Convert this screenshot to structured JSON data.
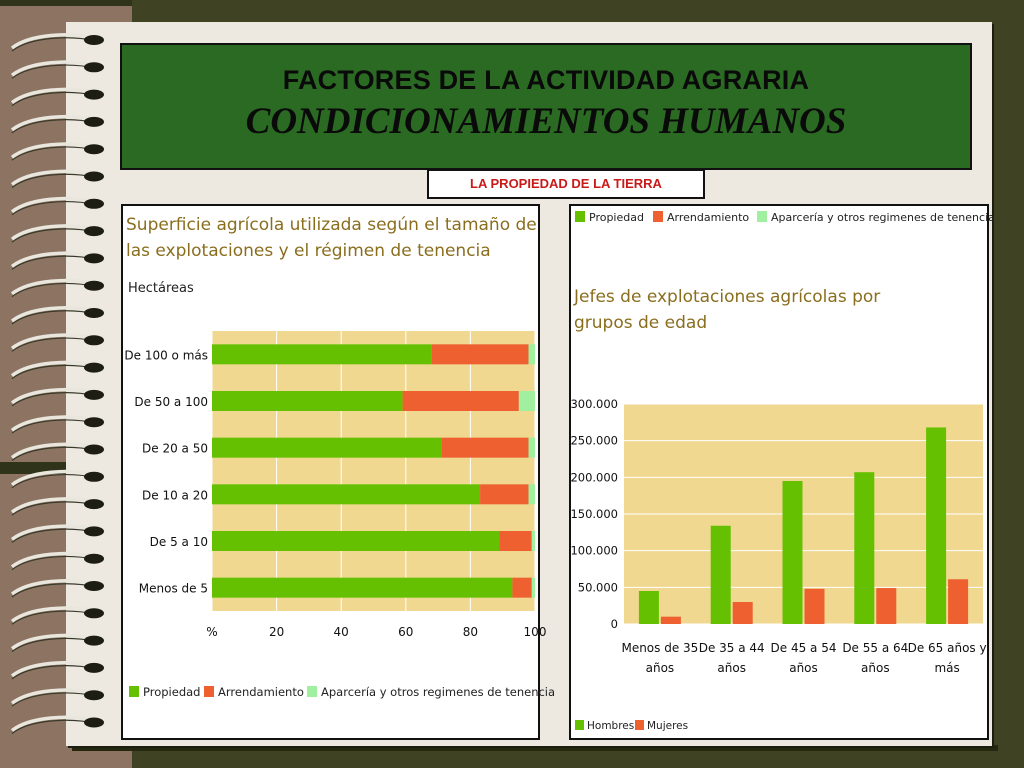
{
  "slide": {
    "title": "FACTORES DE LA ACTIVIDAD AGRARIA",
    "subtitle": "CONDICIONAMIENTOS HUMANOS",
    "section_label": "LA PROPIEDAD DE LA TIERRA"
  },
  "colors": {
    "propiedad": "#64c000",
    "arrendamiento": "#ee6030",
    "aparceria": "#a0f0a0",
    "plot_bg": "#f0d890",
    "title_text": "#8a6e1e",
    "header_bg": "#2a6a22",
    "section_label_text": "#c91a1a"
  },
  "chart_data": [
    {
      "type": "bar",
      "orientation": "horizontal",
      "stacked": true,
      "title": "Superficie agrícola utilizada según el tamaño de las explotaciones y el régimen de tenencia",
      "title_lines": [
        "Superficie agrícola utilizada según el tamaño de",
        "las explotaciones y el régimen de tenencia"
      ],
      "unit_label": "Hectáreas",
      "categories": [
        "De 100 o más",
        "De 50 a 100",
        "De 20 a 50",
        "De 10 a 20",
        "De 5 a 10",
        "Menos de 5"
      ],
      "series": [
        {
          "name": "Propiedad",
          "values": [
            68,
            59,
            71,
            83,
            89,
            93
          ]
        },
        {
          "name": "Arrendamiento",
          "values": [
            30,
            36,
            27,
            15,
            10,
            6
          ]
        },
        {
          "name": "Aparcería y otros regimenes de tenencia",
          "values": [
            2,
            5,
            2,
            2,
            1,
            1
          ]
        }
      ],
      "x_ticks": [
        "%",
        "20",
        "40",
        "60",
        "80",
        "100"
      ],
      "xlim": [
        0,
        100
      ],
      "legend_position": "bottom"
    },
    {
      "type": "bar",
      "orientation": "vertical",
      "stacked": false,
      "title": "Jefes de explotaciones agrícolas por grupos de edad",
      "title_lines": [
        "Jefes de explotaciones agrícolas por",
        "grupos de edad"
      ],
      "top_legend": [
        "Propiedad",
        "Arrendamiento",
        "Aparcería y otros regimenes de tenencia"
      ],
      "categories": [
        "Menos de 35 años",
        "De 35 a 44 años",
        "De 45 a 54 años",
        "De 55 a 64 años",
        "De 65 años y más"
      ],
      "category_lines": [
        [
          "Menos de 35",
          "años"
        ],
        [
          "De 35 a 44",
          "años"
        ],
        [
          "De 45 a 54",
          "años"
        ],
        [
          "De 55 a 64",
          "años"
        ],
        [
          "De 65 años y",
          "más"
        ]
      ],
      "series": [
        {
          "name": "Hombres",
          "values": [
            45000,
            134000,
            195000,
            207000,
            268000
          ]
        },
        {
          "name": "Mujeres",
          "values": [
            10000,
            30000,
            48000,
            49000,
            61000
          ]
        }
      ],
      "y_ticks": [
        "300.000",
        "250.000",
        "200.000",
        "150.000",
        "100.000",
        "50.000",
        "0"
      ],
      "y_tick_values": [
        300000,
        250000,
        200000,
        150000,
        100000,
        50000,
        0
      ],
      "ylim": [
        0,
        300000
      ],
      "legend_position": "bottom-left"
    }
  ]
}
